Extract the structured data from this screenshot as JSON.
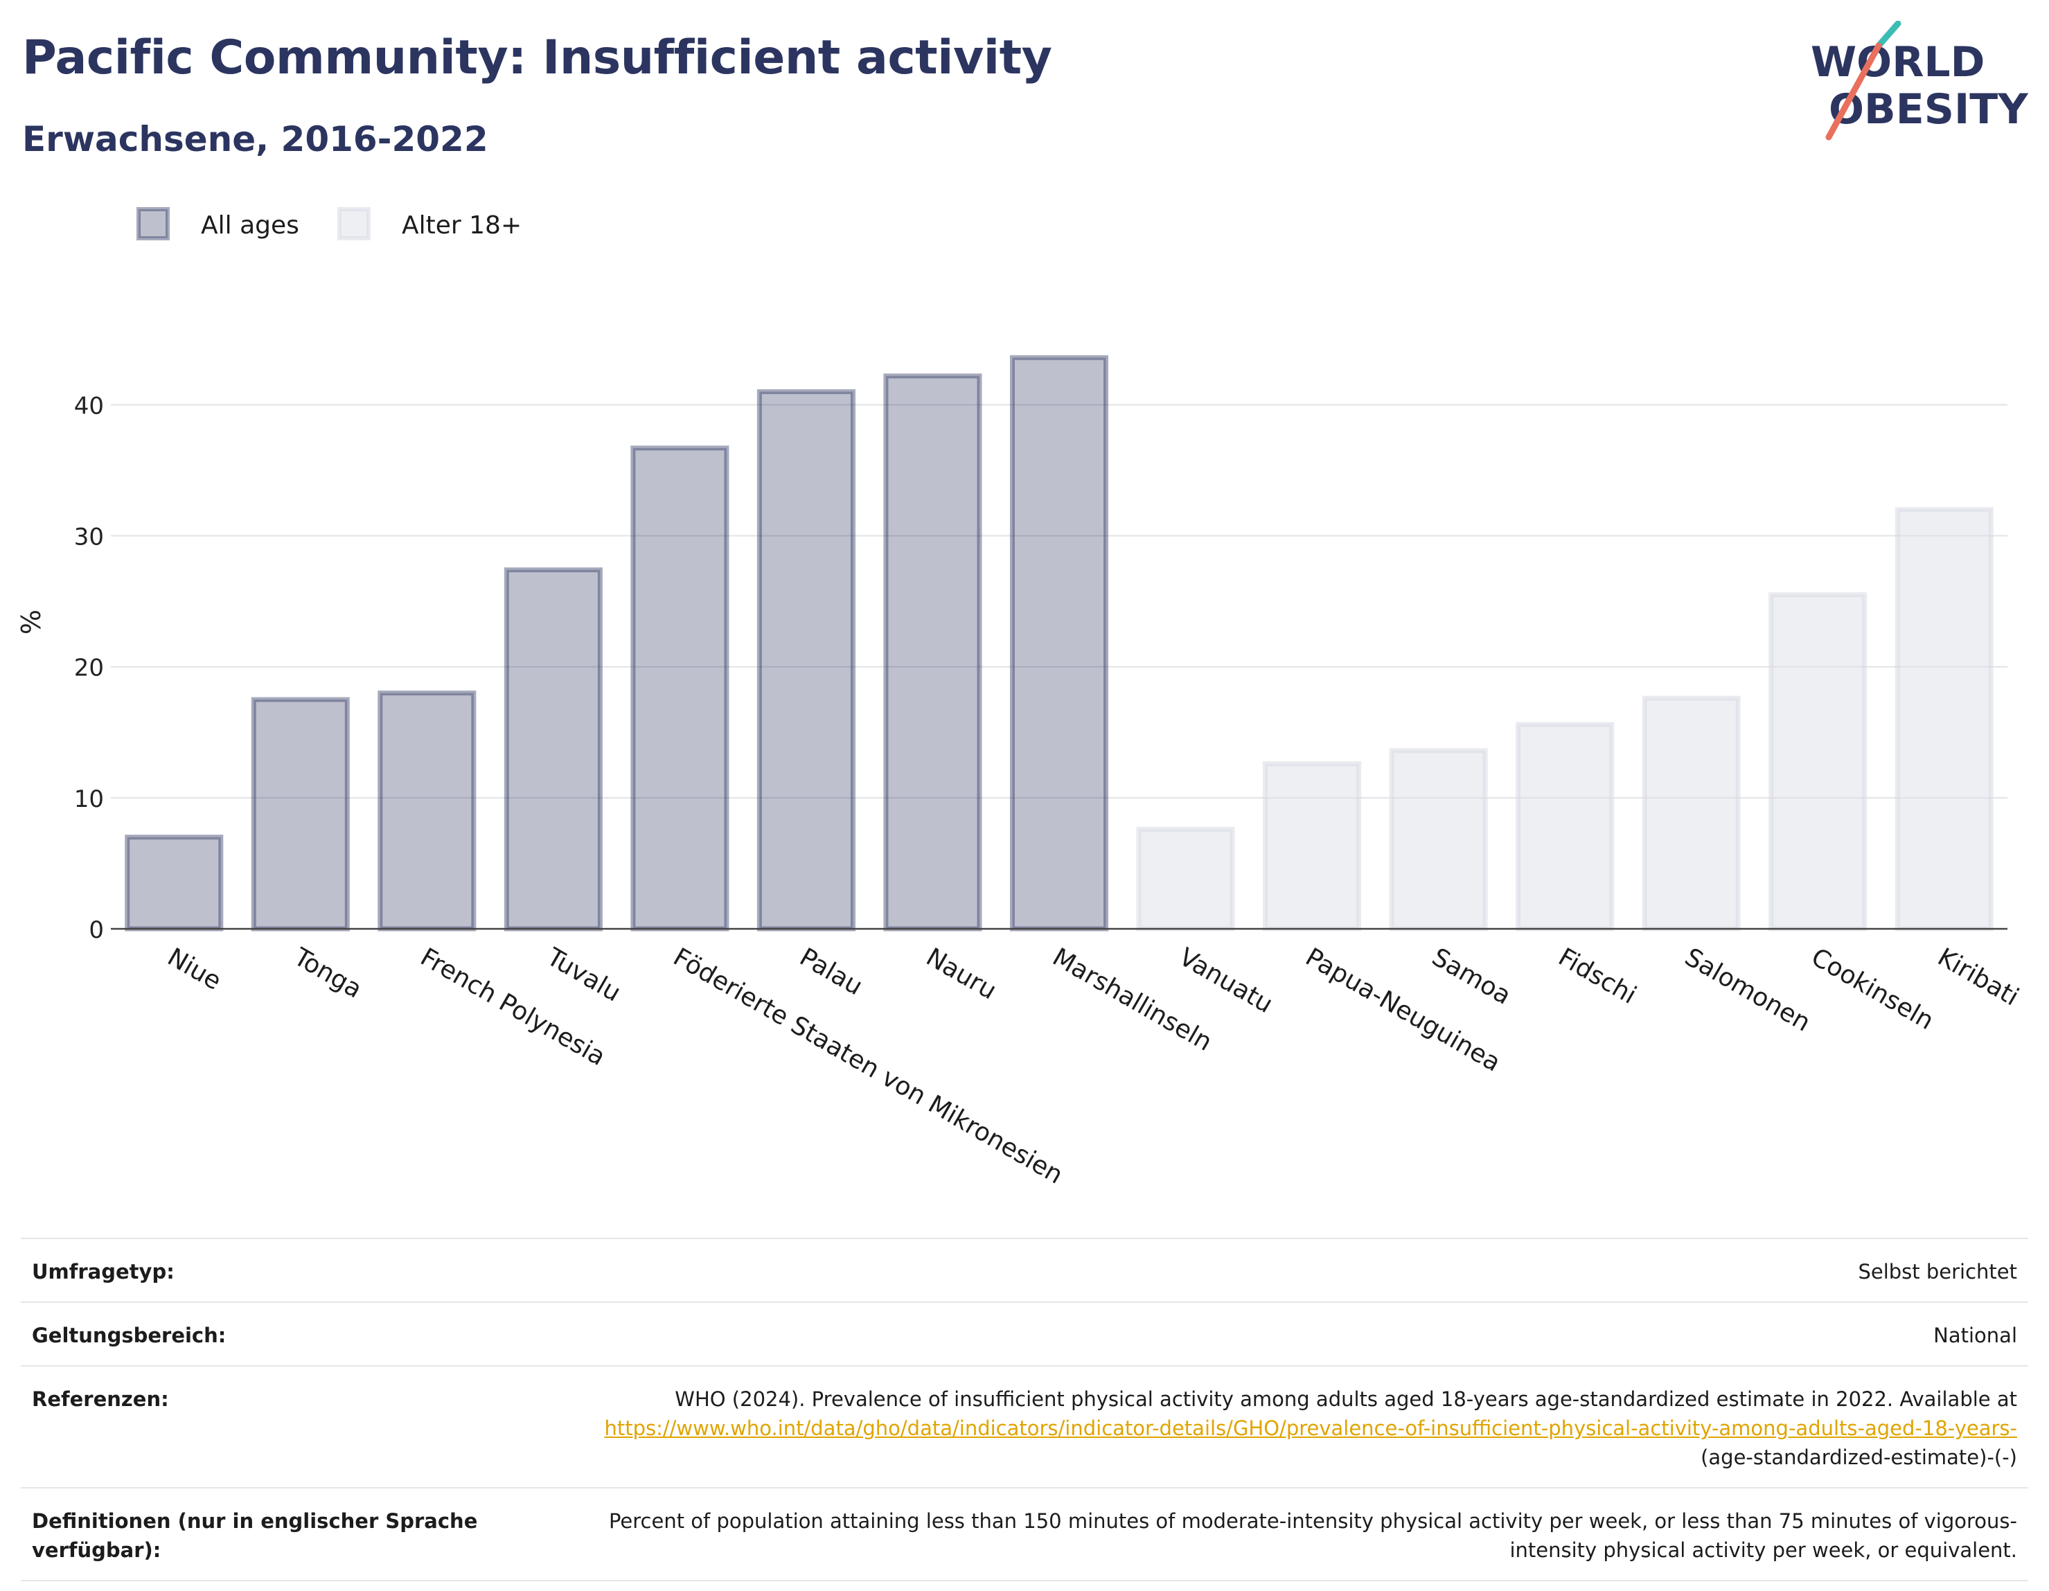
{
  "header": {
    "title": "Pacific Community: Insufficient activity",
    "subtitle": "Erwachsene, 2016-2022"
  },
  "logo": {
    "line1": "WORLD",
    "line2": "OBESITY",
    "name": "world-obesity-logo"
  },
  "chart_data": {
    "type": "bar",
    "ylabel": "%",
    "xlabel": "",
    "ylim": [
      0,
      47
    ],
    "yticks": [
      0,
      10,
      20,
      30,
      40
    ],
    "grid": true,
    "legend_position": "top-left",
    "series": [
      {
        "name": "All ages",
        "color": "#2c3560",
        "categories": [
          "Niue",
          "Tonga",
          "French Polynesia",
          "Tuvalu",
          "Föderierte Staaten von Mikronesien",
          "Palau",
          "Nauru",
          "Marshallinseln"
        ],
        "values": [
          7.0,
          17.5,
          18.0,
          27.4,
          36.7,
          41.0,
          42.2,
          43.6
        ]
      },
      {
        "name": "Alter 18+",
        "color": "#d9dbe4",
        "categories": [
          "Vanuatu",
          "Papua-Neuguinea",
          "Samoa",
          "Fidschi",
          "Salomonen",
          "Cookinseln",
          "Kiribati"
        ],
        "values": [
          7.6,
          12.6,
          13.6,
          15.6,
          17.6,
          25.5,
          32.0
        ]
      }
    ]
  },
  "info": {
    "survey_type": {
      "label": "Umfragetyp:",
      "value": "Selbst berichtet"
    },
    "coverage": {
      "label": "Geltungsbereich:",
      "value": "National"
    },
    "references": {
      "label": "Referenzen:",
      "text": "WHO (2024). Prevalence of insufficient physical activity among adults aged 18-years age-standardized estimate in 2022. Available at",
      "link": "https://www.who.int/data/gho/data/indicators/indicator-details/GHO/prevalence-of-insufficient-physical-activity-among-adults-aged-18-years-",
      "suffix": "(age-standardized-estimate)-(-)"
    },
    "definitions": {
      "label": "Definitionen (nur in englischer Sprache verfügbar):",
      "value": "Percent of population attaining less than 150 minutes of moderate-intensity physical activity per week, or less than 75 minutes of vigorous-intensity physical activity per week, or equivalent."
    }
  }
}
